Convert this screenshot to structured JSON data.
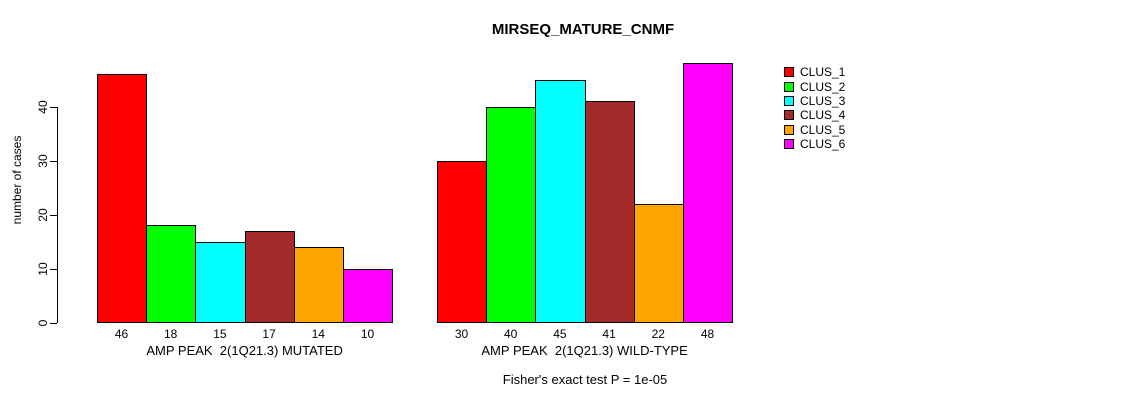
{
  "figure": {
    "title": "MIRSEQ_MATURE_CNMF",
    "ylabel": "number of cases",
    "caption": "Fisher's exact test P = 1e-05"
  },
  "chart_data": {
    "type": "bar",
    "title": "MIRSEQ_MATURE_CNMF",
    "xlabel": "",
    "ylabel": "number of cases",
    "ylim": [
      0,
      48
    ],
    "yticks": [
      0,
      10,
      20,
      30,
      40
    ],
    "grid": false,
    "legend_position": "right-top",
    "legend": [
      "CLUS_1",
      "CLUS_2",
      "CLUS_3",
      "CLUS_4",
      "CLUS_5",
      "CLUS_6"
    ],
    "series_colors": [
      "#FF0000",
      "#00FF00",
      "#00FFFF",
      "#A52A2A",
      "#FFA500",
      "#FF00FF"
    ],
    "groups": [
      {
        "label": "AMP PEAK  2(1Q21.3) MUTATED",
        "values": [
          46,
          18,
          15,
          17,
          14,
          10
        ]
      },
      {
        "label": "AMP PEAK  2(1Q21.3) WILD-TYPE",
        "values": [
          30,
          40,
          45,
          41,
          22,
          48
        ]
      }
    ],
    "bar_value_labels_shown": true,
    "annotation": "Fisher's exact test P = 1e-05"
  }
}
